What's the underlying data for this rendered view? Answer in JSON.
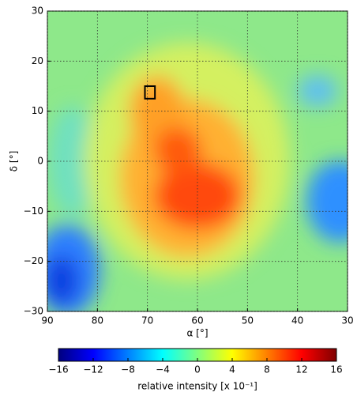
{
  "chart_data": {
    "type": "heatmap",
    "x_label": "α [°]",
    "y_label": "δ [°]",
    "xlim": [
      90,
      30
    ],
    "xticks": [
      90,
      80,
      70,
      60,
      50,
      40,
      30
    ],
    "ylim": [
      -30,
      30
    ],
    "yticks": [
      {
        "value": -30,
        "label": "−30"
      },
      {
        "value": -20,
        "label": "−20"
      },
      {
        "value": -10,
        "label": "−10"
      },
      0,
      10,
      20,
      30
    ],
    "grid": true,
    "highlight_box": {
      "xlim": [
        70.5,
        68.5
      ],
      "ylim": [
        12.5,
        15
      ],
      "color": "#000000"
    },
    "colorbar": {
      "label": "relative intensity [x 10⁻¹]",
      "colormap": "jet",
      "lim": [
        -16,
        16
      ],
      "ticks": [
        {
          "value": -16,
          "label": "−16"
        },
        {
          "value": -12,
          "label": "−12"
        },
        {
          "value": -8,
          "label": "−8"
        },
        {
          "value": -4,
          "label": "−4"
        },
        0,
        4,
        8,
        12,
        16
      ]
    }
  }
}
